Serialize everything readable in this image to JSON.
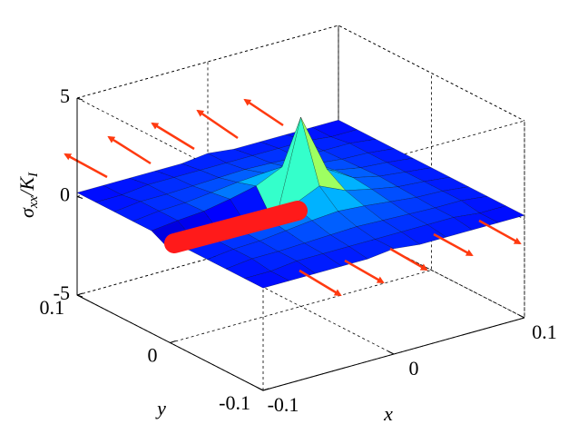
{
  "chart_data": {
    "type": "surface",
    "xlabel": "x",
    "ylabel": "y",
    "zlabel": [
      "σ",
      "xx",
      "/K",
      "I"
    ],
    "x": [
      -0.1,
      -0.08,
      -0.06,
      -0.04,
      -0.02,
      0,
      0.02,
      0.04,
      0.06,
      0.08,
      0.1
    ],
    "y": [
      -0.1,
      -0.08,
      -0.06,
      -0.04,
      -0.02,
      0,
      0.02,
      0.04,
      0.06,
      0.08,
      0.1
    ],
    "z": [
      [
        0.2,
        0.2,
        0.2,
        0.2,
        0.2,
        0.35,
        0.2,
        0.2,
        0.2,
        0.2,
        0.2
      ],
      [
        0.2,
        0.2,
        0.35,
        0.35,
        0.35,
        0.35,
        0.35,
        0.35,
        0.35,
        0.2,
        0.2
      ],
      [
        0.2,
        0.35,
        0.35,
        0.4,
        0.45,
        0.5,
        0.45,
        0.4,
        0.35,
        0.35,
        0.2
      ],
      [
        0.2,
        0.35,
        0.4,
        0.55,
        0.7,
        0.8,
        0.7,
        0.55,
        0.4,
        0.35,
        0.2
      ],
      [
        0.2,
        0.35,
        0.45,
        0.7,
        1.0,
        1.6,
        1.0,
        0.7,
        0.45,
        0.35,
        0.2
      ],
      [
        -0.3,
        -0.3,
        -0.3,
        -0.3,
        -0.5,
        4.6,
        1.6,
        0.8,
        0.5,
        0.35,
        0.2
      ],
      [
        0.2,
        0.35,
        0.45,
        0.7,
        1.0,
        1.6,
        1.0,
        0.7,
        0.45,
        0.35,
        0.2
      ],
      [
        0.2,
        0.35,
        0.4,
        0.55,
        0.7,
        0.8,
        0.7,
        0.55,
        0.4,
        0.35,
        0.2
      ],
      [
        0.2,
        0.35,
        0.35,
        0.4,
        0.45,
        0.5,
        0.45,
        0.4,
        0.35,
        0.35,
        0.2
      ],
      [
        0.2,
        0.2,
        0.35,
        0.35,
        0.35,
        0.35,
        0.35,
        0.35,
        0.35,
        0.2,
        0.2
      ],
      [
        0.2,
        0.2,
        0.2,
        0.2,
        0.2,
        0.35,
        0.2,
        0.2,
        0.2,
        0.2,
        0.2
      ]
    ],
    "xlim": [
      -0.1,
      0.1
    ],
    "xticks": [
      -0.1,
      0,
      0.1
    ],
    "ylim": [
      -0.1,
      0.1
    ],
    "yticks": [
      -0.1,
      0,
      0.1
    ],
    "zlim": [
      -5,
      5
    ],
    "zticks": [
      -5,
      0,
      5
    ],
    "grid": true,
    "colormap": "jet"
  }
}
